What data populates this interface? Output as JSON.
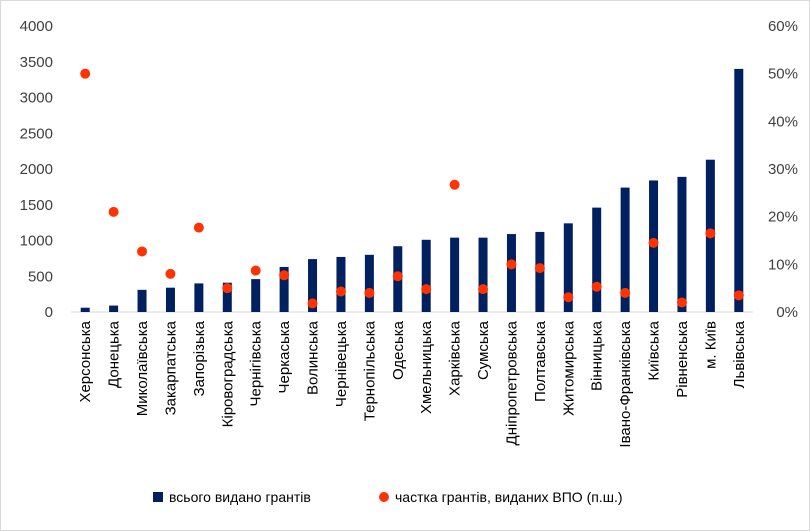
{
  "chart_data": {
    "type": "bar",
    "categories": [
      "Херсонська",
      "Донецька",
      "Миколаївська",
      "Закарпатська",
      "Запорізька",
      "Кіровоградська",
      "Чернігівська",
      "Черкаська",
      "Волинська",
      "Чернівецька",
      "Тернопільська",
      "Одеська",
      "Хмельницька",
      "Харківська",
      "Сумська",
      "Дніпропетровська",
      "Полтавська",
      "Житомирська",
      "Вінницька",
      "Івано-Франківська",
      "Київська",
      "Рівненська",
      "м. Київ",
      "Львівська"
    ],
    "series": [
      {
        "name": "всього видано грантів",
        "type": "bar",
        "axis": "left",
        "color": "#002060",
        "values": [
          60,
          90,
          310,
          340,
          400,
          410,
          460,
          630,
          740,
          770,
          800,
          920,
          1010,
          1040,
          1040,
          1090,
          1120,
          1240,
          1460,
          1740,
          1840,
          1890,
          2130,
          3400
        ]
      },
      {
        "name": "частка грантів, виданих ВПО (п.ш.)",
        "type": "scatter",
        "axis": "right",
        "color": "#ff3300",
        "values": [
          0.5,
          0.21,
          0.127,
          0.08,
          0.177,
          0.05,
          0.087,
          0.077,
          0.018,
          0.043,
          0.04,
          0.075,
          0.048,
          0.267,
          0.048,
          0.1,
          0.092,
          0.031,
          0.053,
          0.04,
          0.145,
          0.02,
          0.165,
          0.035
        ]
      }
    ],
    "y_left": {
      "ylim": [
        0,
        4000
      ],
      "ticks": [
        "0",
        "500",
        "1000",
        "1500",
        "2000",
        "2500",
        "3000",
        "3500",
        "4000"
      ]
    },
    "y_right": {
      "ylim": [
        0,
        0.6
      ],
      "ticks": [
        "0%",
        "10%",
        "20%",
        "30%",
        "40%",
        "50%",
        "60%"
      ]
    },
    "grid": false,
    "legend": "bottom"
  }
}
